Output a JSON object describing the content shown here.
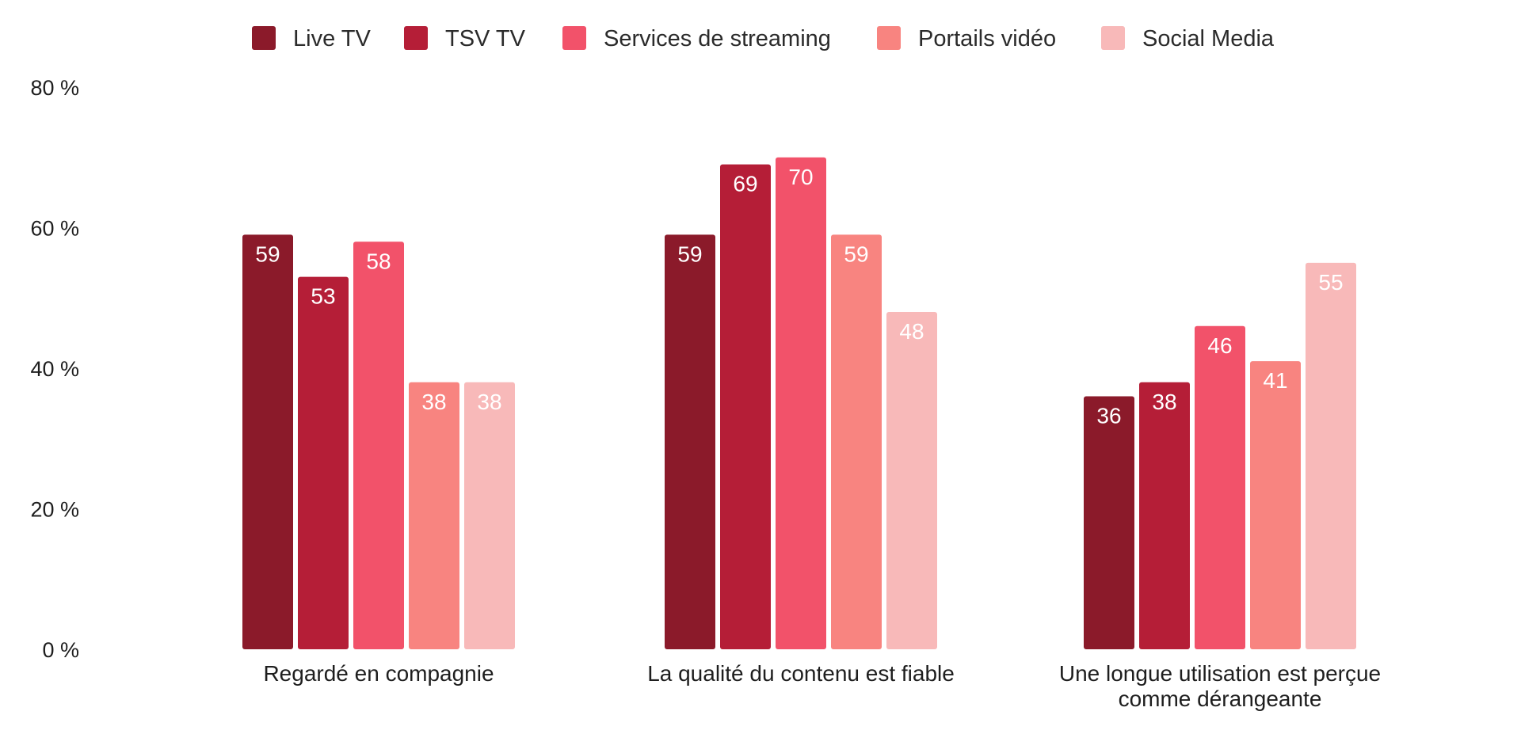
{
  "chart_data": {
    "type": "bar",
    "title": "",
    "xlabel": "",
    "ylabel": "",
    "y_tick_labels": [
      "0 %",
      "20 %",
      "40 %",
      "60 %",
      "80 %"
    ],
    "y_ticks": [
      0,
      20,
      40,
      60,
      80
    ],
    "ylim": [
      0,
      80
    ],
    "grid": false,
    "legend_position": "top-center",
    "categories": [
      [
        "Regardé en compagnie"
      ],
      [
        "La qualité du contenu est fiable"
      ],
      [
        "Une longue utilisation est perçue",
        "comme dérangeante"
      ]
    ],
    "series": [
      {
        "name": "Live TV",
        "color": "#8b1a2a",
        "values": [
          59,
          59,
          36
        ]
      },
      {
        "name": "TSV TV",
        "color": "#b51e37",
        "values": [
          53,
          69,
          38
        ]
      },
      {
        "name": "Services de streaming",
        "color": "#f2526a",
        "values": [
          58,
          70,
          46
        ]
      },
      {
        "name": "Portails vidéo",
        "color": "#f88480",
        "values": [
          38,
          59,
          41
        ]
      },
      {
        "name": "Social Media",
        "color": "#f8b9b9",
        "values": [
          38,
          48,
          55
        ]
      }
    ]
  }
}
